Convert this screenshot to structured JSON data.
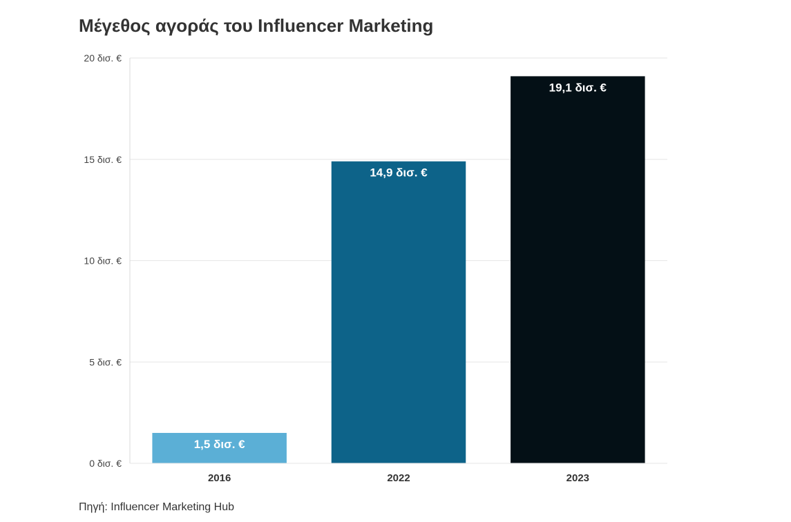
{
  "chart_data": {
    "type": "bar",
    "title": "Μέγεθος αγοράς του Influencer Marketing",
    "categories": [
      "2016",
      "2022",
      "2023"
    ],
    "values": [
      1.5,
      14.9,
      19.1
    ],
    "data_labels": [
      "1,5 δισ. €",
      "14,9 δισ. €",
      "19,1 δισ. €"
    ],
    "bar_colors": [
      "#5bafd6",
      "#0d6389",
      "#041016"
    ],
    "ylim": [
      0,
      20
    ],
    "yticks": [
      0,
      5,
      10,
      15,
      20
    ],
    "ytick_labels": [
      "0 δισ. €",
      "5 δισ. €",
      "10 δισ. €",
      "15 δισ. €",
      "20 δισ. €"
    ],
    "grid": true,
    "xlabel": "",
    "ylabel": ""
  },
  "source": "Πηγή: Influencer Marketing Hub"
}
